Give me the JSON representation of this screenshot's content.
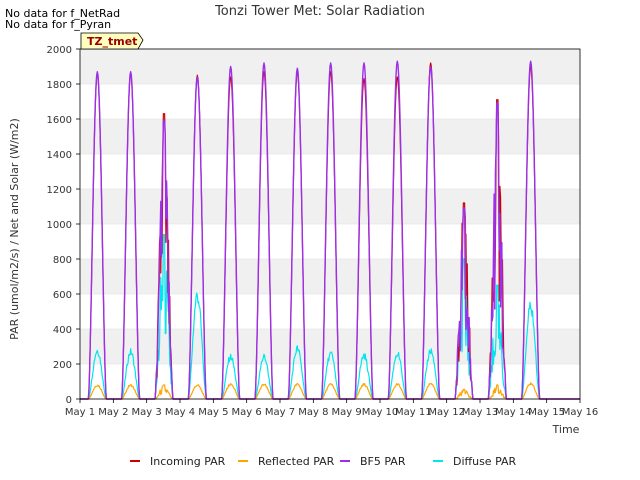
{
  "notices": [
    "No data for f_NetRad",
    "No data for f_Pyran"
  ],
  "badge": "TZ_tmet",
  "colors": {
    "incoming": "#cc0000",
    "reflected": "#ffa500",
    "bf5": "#9b30e8",
    "diffuse": "#00e5ee",
    "band": "#f0f0f0",
    "badge_bg": "#ffffc0",
    "badge_text": "#990000"
  },
  "chart_data": {
    "type": "line",
    "title": "Tonzi Tower Met: Solar Radiation",
    "xlabel": "Time",
    "ylabel": "PAR (umol/m2/s) / Net and Solar (W/m2)",
    "xlim": [
      1,
      16
    ],
    "ylim": [
      0,
      2000
    ],
    "x_ticks": [
      {
        "value": 1,
        "label": "May 1"
      },
      {
        "value": 2,
        "label": "May 2"
      },
      {
        "value": 3,
        "label": "May 3"
      },
      {
        "value": 4,
        "label": "May 4"
      },
      {
        "value": 5,
        "label": "May 5"
      },
      {
        "value": 6,
        "label": "May 6"
      },
      {
        "value": 7,
        "label": "May 7"
      },
      {
        "value": 8,
        "label": "May 8"
      },
      {
        "value": 9,
        "label": "May 9"
      },
      {
        "value": 10,
        "label": "May 10"
      },
      {
        "value": 11,
        "label": "May 11"
      },
      {
        "value": 12,
        "label": "May 12"
      },
      {
        "value": 13,
        "label": "May 13"
      },
      {
        "value": 14,
        "label": "May 14"
      },
      {
        "value": 15,
        "label": "May 15"
      },
      {
        "value": 16,
        "label": "May 16"
      }
    ],
    "y_ticks": [
      0,
      200,
      400,
      600,
      800,
      1000,
      1200,
      1400,
      1600,
      1800,
      2000
    ],
    "grid": true,
    "legend_position": "bottom",
    "series": [
      {
        "name": "Incoming PAR",
        "key": "incoming",
        "daily_peaks": [
          1860,
          1860,
          1630,
          1850,
          1840,
          1870,
          1870,
          1870,
          1830,
          1840,
          1920,
          1120,
          1710,
          1900
        ],
        "cloudy_days": [
          3,
          12,
          13
        ]
      },
      {
        "name": "Reflected PAR",
        "key": "reflected",
        "daily_peaks": [
          85,
          85,
          80,
          85,
          90,
          90,
          90,
          90,
          90,
          90,
          95,
          55,
          80,
          95
        ]
      },
      {
        "name": "BF5 PAR",
        "key": "bf5",
        "daily_peaks": [
          1870,
          1870,
          1590,
          1840,
          1900,
          1920,
          1890,
          1920,
          1920,
          1930,
          1900,
          1090,
          1690,
          1930
        ]
      },
      {
        "name": "Diffuse PAR",
        "key": "diffuse",
        "daily_peaks": [
          300,
          290,
          940,
          640,
          260,
          260,
          310,
          280,
          270,
          280,
          300,
          800,
          650,
          570
        ]
      }
    ]
  }
}
